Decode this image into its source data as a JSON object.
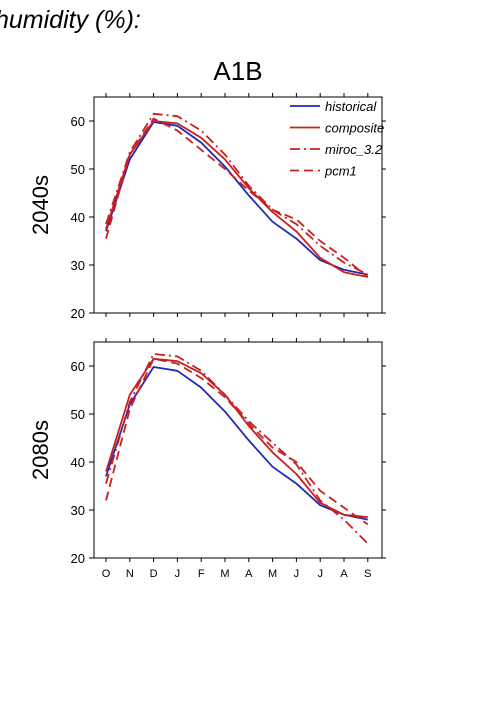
{
  "heading": "humidity (%):",
  "scenario": "A1B",
  "colors": {
    "historical": "#1f2bb5",
    "model": "#c8201f",
    "axis": "#000000"
  },
  "chart_data": [
    {
      "type": "line",
      "row_label": "2040s",
      "categories": [
        "O",
        "N",
        "D",
        "J",
        "F",
        "M",
        "A",
        "M",
        "J",
        "J",
        "A",
        "S"
      ],
      "ylim": [
        20,
        65
      ],
      "yticks": [
        "20",
        "30",
        "40",
        "50",
        "60"
      ],
      "legend": {
        "position": "top-right"
      },
      "series": [
        {
          "name": "historical",
          "style": "solid",
          "color": "#1f2bb5",
          "values": [
            37,
            52,
            59.8,
            59,
            55.5,
            50.5,
            44.5,
            39,
            35.5,
            31,
            29,
            28
          ]
        },
        {
          "name": "composite",
          "style": "solid",
          "color": "#c8201f",
          "values": [
            37.5,
            53,
            60,
            59.5,
            56.5,
            52,
            46,
            41,
            37,
            31.5,
            28.5,
            27.5
          ]
        },
        {
          "name": "miroc_3.2",
          "style": "dashdot",
          "color": "#c8201f",
          "values": [
            38.5,
            53.5,
            61.5,
            61,
            58,
            53,
            46.5,
            41.5,
            38.5,
            34,
            30.5,
            28
          ]
        },
        {
          "name": "pcm1",
          "style": "dashed",
          "color": "#c8201f",
          "values": [
            35.5,
            53,
            60.5,
            58,
            54,
            50,
            45.5,
            41.5,
            39.5,
            35,
            31.5,
            27.5
          ]
        }
      ]
    },
    {
      "type": "line",
      "row_label": "2080s",
      "categories": [
        "O",
        "N",
        "D",
        "J",
        "F",
        "M",
        "A",
        "M",
        "J",
        "J",
        "A",
        "S"
      ],
      "ylim": [
        20,
        65
      ],
      "yticks": [
        "20",
        "30",
        "40",
        "50",
        "60"
      ],
      "series": [
        {
          "name": "historical",
          "style": "solid",
          "color": "#1f2bb5",
          "values": [
            37,
            52,
            59.8,
            59,
            55.5,
            50.5,
            44.5,
            39,
            35.5,
            31,
            29,
            28
          ]
        },
        {
          "name": "composite",
          "style": "solid",
          "color": "#c8201f",
          "values": [
            38,
            54,
            61.5,
            61,
            58.5,
            54,
            47.5,
            42,
            37.5,
            31.5,
            29,
            28.5
          ]
        },
        {
          "name": "miroc_3.2",
          "style": "dashdot",
          "color": "#c8201f",
          "values": [
            35.5,
            52.5,
            62.5,
            62,
            59,
            54,
            48.5,
            44,
            39.5,
            32,
            28,
            23
          ]
        },
        {
          "name": "pcm1",
          "style": "dashed",
          "color": "#c8201f",
          "values": [
            32,
            51,
            61.5,
            60.5,
            57.5,
            53.5,
            48,
            43,
            40,
            34,
            30.5,
            27
          ]
        }
      ]
    }
  ]
}
